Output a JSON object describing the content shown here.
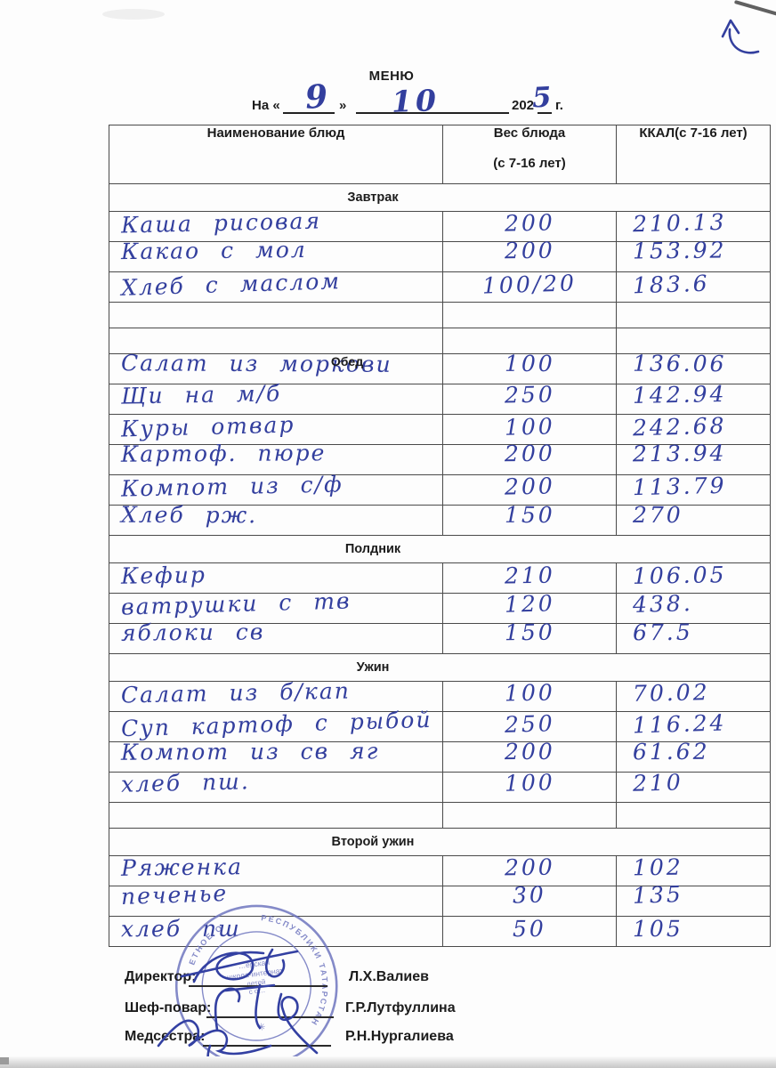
{
  "colors": {
    "ink": "#333f9e",
    "stamp": "#6a71bd",
    "paper": "#fdfdfd",
    "table_line": "#4a4a4a",
    "print": "#1c1c1c"
  },
  "header": {
    "title": "МЕНЮ",
    "date": {
      "prefix": "На «",
      "day": "9",
      "close_quote": "»",
      "month": "10",
      "year_prefix": "202",
      "year_written": "5",
      "year_label": "г."
    }
  },
  "table": {
    "columns": {
      "dish": "Наименование блюд",
      "weight": "Вес блюда",
      "weight_note": "(с 7-16 лет)",
      "kcal": "ККАЛ(с 7-16 лет)"
    },
    "sections": [
      {
        "label": "Завтрак",
        "overlay": false,
        "empty_after": 2,
        "rows": [
          {
            "dish": "Каша рисовая",
            "weight": "200",
            "kcal": "210.13"
          },
          {
            "dish": "Какао с мол",
            "weight": "200",
            "kcal": "153.92"
          },
          {
            "dish": "Хлеб с маслом",
            "weight": "100/20",
            "kcal": "183.6"
          }
        ]
      },
      {
        "label": "Обед",
        "overlay": true,
        "empty_after": 0,
        "rows": [
          {
            "dish": "Салат из моркови",
            "weight": "100",
            "kcal": "136.06"
          },
          {
            "dish": "Щи на м/б",
            "weight": "250",
            "kcal": "142.94"
          },
          {
            "dish": "Куры отвар",
            "weight": "100",
            "kcal": "242.68"
          },
          {
            "dish": "Картоф. пюре",
            "weight": "200",
            "kcal": "213.94"
          },
          {
            "dish": "Компот из с/ф",
            "weight": "200",
            "kcal": "113.79"
          },
          {
            "dish": "Хлеб рж.",
            "weight": "150",
            "kcal": "270"
          }
        ]
      },
      {
        "label": "Полдник",
        "overlay": false,
        "empty_after": 0,
        "rows": [
          {
            "dish": "Кефир",
            "weight": "210",
            "kcal": "106.05"
          },
          {
            "dish": "ватрушки с тв",
            "weight": "120",
            "kcal": "438."
          },
          {
            "dish": "яблоки св",
            "weight": "150",
            "kcal": "67.5"
          }
        ]
      },
      {
        "label": "Ужин",
        "overlay": false,
        "empty_after": 1,
        "rows": [
          {
            "dish": "Салат из б/кап",
            "weight": "100",
            "kcal": "70.02"
          },
          {
            "dish": "Суп картоф с рыбой",
            "weight": "250",
            "kcal": "116.24"
          },
          {
            "dish": "Компот из св яг",
            "weight": "200",
            "kcal": "61.62"
          },
          {
            "dish": "хлеб пш.",
            "weight": "100",
            "kcal": "210"
          }
        ]
      },
      {
        "label": "Второй ужин",
        "overlay": false,
        "empty_after": 0,
        "rows": [
          {
            "dish": "Ряженка",
            "weight": "200",
            "kcal": "102"
          },
          {
            "dish": "печенье",
            "weight": "30",
            "kcal": "135"
          },
          {
            "dish": "хлеб пш",
            "weight": "50",
            "kcal": "105"
          }
        ]
      }
    ]
  },
  "signatures": [
    {
      "label": "Директор:",
      "name": "Л.Х.Валиев"
    },
    {
      "label": "Шеф-повар:",
      "name": "Г.Р.Лутфуллина"
    },
    {
      "label": "Медсестра:",
      "name": "Р.Н.Нургалиева"
    }
  ],
  "stamp": {
    "ring_top": "ЕТНОЕ О",
    "ring_right": "РЕСПУБЛИКИ ТАТАРСТАН",
    "inner_lines": [
      "…ерская",
      "школа-интернат",
      "детей",
      "с о…"
    ]
  }
}
